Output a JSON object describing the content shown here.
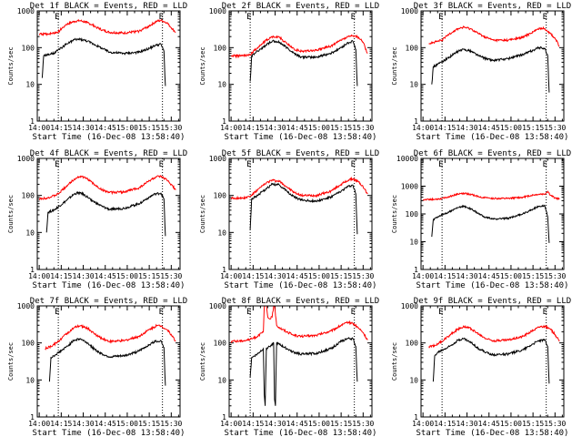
{
  "chart_data": [
    {
      "type": "line",
      "title": "Det 1f BLACK = Events, RED = LLD",
      "xlabel": "Start Time (16-Dec-08 13:58:40)",
      "ylabel": "Counts/sec",
      "x_ticks": [
        "14:00",
        "14:15",
        "14:30",
        "14:45",
        "15:00",
        "15:15",
        "15:30"
      ],
      "y_ticks": [
        "1",
        "10",
        "100",
        "1000"
      ],
      "y_scale": "log",
      "ylim": [
        1,
        1000
      ],
      "markers": [
        "E",
        "E"
      ],
      "marker_times_min": [
        13,
        84
      ],
      "series": [
        {
          "name": "BLACK = Events",
          "color": "#000000",
          "t_min": [
            2,
            3,
            10,
            18,
            24,
            28,
            33,
            38,
            43,
            48,
            58,
            68,
            75,
            79,
            83,
            85,
            86
          ],
          "values": [
            15,
            60,
            70,
            120,
            165,
            170,
            150,
            120,
            95,
            75,
            70,
            75,
            95,
            115,
            125,
            80,
            9
          ]
        },
        {
          "name": "RED = LLD",
          "color": "#ff0000",
          "t_min": [
            0,
            8,
            13,
            18,
            24,
            28,
            33,
            38,
            43,
            48,
            58,
            68,
            75,
            80,
            83,
            87,
            90,
            93
          ],
          "values": [
            230,
            240,
            270,
            420,
            520,
            540,
            480,
            380,
            300,
            260,
            250,
            280,
            390,
            520,
            550,
            480,
            350,
            260
          ]
        }
      ]
    },
    {
      "type": "line",
      "title": "Det 2f BLACK = Events, RED = LLD",
      "xlabel": "Start Time (16-Dec-08 13:58:40)",
      "ylabel": "Counts/sec",
      "x_ticks": [
        "14:00",
        "14:15",
        "14:30",
        "14:45",
        "15:00",
        "15:15",
        "15:30"
      ],
      "y_ticks": [
        "1",
        "10",
        "100",
        "1000"
      ],
      "y_scale": "log",
      "ylim": [
        1,
        1000
      ],
      "markers": [
        "E",
        "E"
      ],
      "marker_times_min": [
        13,
        84
      ],
      "series": [
        {
          "name": "BLACK = Events",
          "color": "#000000",
          "t_min": [
            13,
            14,
            18,
            24,
            28,
            33,
            38,
            43,
            48,
            58,
            68,
            75,
            79,
            83,
            85,
            86
          ],
          "values": [
            12,
            60,
            80,
            120,
            150,
            140,
            100,
            70,
            55,
            55,
            70,
            100,
            130,
            150,
            90,
            9
          ]
        },
        {
          "name": "RED = LLD",
          "color": "#ff0000",
          "t_min": [
            0,
            8,
            13,
            18,
            24,
            28,
            33,
            38,
            43,
            48,
            58,
            68,
            75,
            80,
            83,
            87,
            90,
            93
          ],
          "values": [
            60,
            60,
            65,
            100,
            160,
            200,
            190,
            130,
            90,
            80,
            85,
            110,
            160,
            200,
            210,
            190,
            140,
            70
          ]
        }
      ]
    },
    {
      "type": "line",
      "title": "Det 3f BLACK = Events, RED = LLD",
      "xlabel": "Start Time (16-Dec-08 13:58:40)",
      "ylabel": "Counts/sec",
      "x_ticks": [
        "14:00",
        "14:15",
        "14:30",
        "14:45",
        "15:00",
        "15:15",
        "15:30"
      ],
      "y_ticks": [
        "1",
        "10",
        "100",
        "1000"
      ],
      "y_scale": "log",
      "ylim": [
        1,
        1000
      ],
      "markers": [
        "E",
        "E"
      ],
      "marker_times_min": [
        13,
        84
      ],
      "series": [
        {
          "name": "BLACK = Events",
          "color": "#000000",
          "t_min": [
            6,
            7,
            10,
            18,
            24,
            28,
            33,
            38,
            43,
            48,
            58,
            68,
            75,
            79,
            83,
            85,
            86
          ],
          "values": [
            10,
            30,
            35,
            55,
            80,
            90,
            80,
            60,
            50,
            45,
            50,
            65,
            85,
            100,
            95,
            60,
            6
          ]
        },
        {
          "name": "RED = LLD",
          "color": "#ff0000",
          "t_min": [
            4,
            8,
            13,
            18,
            24,
            28,
            33,
            38,
            43,
            48,
            58,
            68,
            75,
            80,
            83,
            87,
            90,
            93
          ],
          "values": [
            130,
            140,
            160,
            240,
            330,
            360,
            320,
            240,
            190,
            160,
            160,
            190,
            270,
            340,
            330,
            240,
            180,
            110
          ]
        }
      ]
    },
    {
      "type": "line",
      "title": "Det 4f BLACK = Events, RED = LLD",
      "xlabel": "Start Time (16-Dec-08 13:58:40)",
      "ylabel": "Counts/sec",
      "x_ticks": [
        "14:00",
        "14:15",
        "14:30",
        "14:45",
        "15:00",
        "15:15",
        "15:30"
      ],
      "y_ticks": [
        "1",
        "10",
        "100",
        "1000"
      ],
      "y_scale": "log",
      "ylim": [
        1,
        1000
      ],
      "markers": [
        "E",
        "E"
      ],
      "marker_times_min": [
        13,
        84
      ],
      "series": [
        {
          "name": "BLACK = Events",
          "color": "#000000",
          "t_min": [
            5,
            6,
            10,
            18,
            24,
            28,
            33,
            38,
            43,
            48,
            58,
            68,
            75,
            79,
            83,
            85,
            86
          ],
          "values": [
            10,
            35,
            40,
            70,
            110,
            120,
            90,
            65,
            50,
            42,
            45,
            60,
            90,
            110,
            115,
            80,
            8
          ]
        },
        {
          "name": "RED = LLD",
          "color": "#ff0000",
          "t_min": [
            0,
            8,
            13,
            18,
            24,
            28,
            33,
            38,
            43,
            48,
            58,
            68,
            75,
            80,
            83,
            87,
            90,
            93
          ],
          "values": [
            80,
            90,
            110,
            170,
            280,
            330,
            280,
            190,
            140,
            120,
            125,
            160,
            250,
            320,
            320,
            260,
            200,
            140
          ]
        }
      ]
    },
    {
      "type": "line",
      "title": "Det 5f BLACK = Events, RED = LLD",
      "xlabel": "Start Time (16-Dec-08 13:58:40)",
      "ylabel": "Counts/sec",
      "x_ticks": [
        "14:00",
        "14:15",
        "14:30",
        "14:45",
        "15:00",
        "15:15",
        "15:30"
      ],
      "y_ticks": [
        "1",
        "10",
        "100",
        "1000"
      ],
      "y_scale": "log",
      "ylim": [
        1,
        1000
      ],
      "markers": [
        "E",
        "E"
      ],
      "marker_times_min": [
        13,
        84
      ],
      "series": [
        {
          "name": "BLACK = Events",
          "color": "#000000",
          "t_min": [
            13,
            14,
            18,
            24,
            28,
            33,
            38,
            43,
            48,
            58,
            68,
            75,
            79,
            83,
            85,
            86
          ],
          "values": [
            12,
            80,
            100,
            150,
            200,
            190,
            130,
            90,
            75,
            70,
            90,
            130,
            170,
            190,
            110,
            9
          ]
        },
        {
          "name": "RED = LLD",
          "color": "#ff0000",
          "t_min": [
            0,
            8,
            13,
            18,
            24,
            28,
            33,
            38,
            43,
            48,
            58,
            68,
            75,
            80,
            83,
            87,
            90,
            93
          ],
          "values": [
            85,
            85,
            95,
            140,
            220,
            260,
            240,
            170,
            120,
            100,
            100,
            130,
            200,
            260,
            280,
            230,
            170,
            110
          ]
        }
      ]
    },
    {
      "type": "line",
      "title": "Det 6f BLACK = Events, RED = LLD",
      "xlabel": "Start Time (16-Dec-08 13:58:40)",
      "ylabel": "Counts/sec",
      "x_ticks": [
        "14:00",
        "14:15",
        "14:30",
        "14:45",
        "15:00",
        "15:15",
        "15:30"
      ],
      "y_ticks": [
        "1",
        "10",
        "100",
        "1000",
        "10000"
      ],
      "y_scale": "log",
      "ylim": [
        1,
        10000
      ],
      "markers": [
        "E",
        "E"
      ],
      "marker_times_min": [
        13,
        84
      ],
      "series": [
        {
          "name": "BLACK = Events",
          "color": "#000000",
          "t_min": [
            6,
            7,
            10,
            18,
            24,
            28,
            33,
            38,
            43,
            48,
            58,
            68,
            75,
            79,
            83,
            85,
            86
          ],
          "values": [
            15,
            60,
            80,
            120,
            170,
            190,
            150,
            100,
            75,
            65,
            70,
            100,
            150,
            190,
            200,
            80,
            9
          ]
        },
        {
          "name": "RED = LLD",
          "color": "#ff0000",
          "t_min": [
            0,
            8,
            13,
            18,
            24,
            28,
            33,
            38,
            43,
            48,
            58,
            68,
            75,
            80,
            83,
            85,
            87,
            90,
            93
          ],
          "values": [
            330,
            340,
            360,
            420,
            520,
            550,
            500,
            420,
            380,
            360,
            360,
            400,
            480,
            520,
            520,
            650,
            470,
            380,
            340
          ]
        }
      ]
    },
    {
      "type": "line",
      "title": "Det 7f BLACK = Events, RED = LLD",
      "xlabel": "Start Time (16-Dec-08 13:58:40)",
      "ylabel": "Counts/sec",
      "x_ticks": [
        "14:00",
        "14:15",
        "14:30",
        "14:45",
        "15:00",
        "15:15",
        "15:30"
      ],
      "y_ticks": [
        "1",
        "10",
        "100",
        "1000"
      ],
      "y_scale": "log",
      "ylim": [
        1,
        1000
      ],
      "markers": [
        "E",
        "E"
      ],
      "marker_times_min": [
        13,
        84
      ],
      "series": [
        {
          "name": "BLACK = Events",
          "color": "#000000",
          "t_min": [
            7,
            8,
            10,
            18,
            24,
            28,
            33,
            38,
            43,
            48,
            58,
            68,
            75,
            79,
            83,
            85,
            86
          ],
          "values": [
            9,
            40,
            45,
            75,
            120,
            130,
            100,
            65,
            50,
            42,
            45,
            60,
            90,
            110,
            115,
            75,
            7
          ]
        },
        {
          "name": "RED = LLD",
          "color": "#ff0000",
          "t_min": [
            4,
            8,
            13,
            18,
            24,
            28,
            33,
            38,
            43,
            48,
            58,
            68,
            75,
            80,
            83,
            87,
            90,
            93
          ],
          "values": [
            70,
            80,
            110,
            170,
            260,
            290,
            250,
            170,
            130,
            110,
            115,
            150,
            230,
            290,
            290,
            230,
            170,
            110
          ]
        }
      ]
    },
    {
      "type": "line",
      "title": "Det 8f BLACK = Events, RED = LLD",
      "xlabel": "Start Time (16-Dec-08 13:58:40)",
      "ylabel": "Counts/sec",
      "x_ticks": [
        "14:00",
        "14:15",
        "14:30",
        "14:45",
        "15:00",
        "15:15",
        "15:30"
      ],
      "y_ticks": [
        "1",
        "10",
        "100",
        "1000"
      ],
      "y_scale": "log",
      "ylim": [
        1,
        1000
      ],
      "markers": [
        "E",
        "E"
      ],
      "marker_times_min": [
        13,
        84
      ],
      "series": [
        {
          "name": "BLACK = Events",
          "color": "#000000",
          "t_min": [
            13,
            14,
            18,
            22,
            22.6,
            23.2,
            24,
            26,
            27,
            29,
            29.6,
            30.2,
            31,
            33,
            38,
            43,
            48,
            58,
            68,
            75,
            79,
            83,
            85,
            86
          ],
          "values": [
            12,
            40,
            50,
            70,
            4,
            2,
            70,
            80,
            85,
            100,
            3,
            2,
            100,
            90,
            70,
            55,
            50,
            52,
            70,
            110,
            130,
            130,
            80,
            9
          ]
        },
        {
          "name": "RED = LLD",
          "color": "#ff0000",
          "t_min": [
            0,
            8,
            13,
            18,
            22,
            22.6,
            24,
            25,
            26,
            28,
            29,
            29.6,
            31,
            33,
            38,
            43,
            48,
            58,
            68,
            75,
            80,
            83,
            87,
            90,
            93
          ],
          "values": [
            110,
            115,
            125,
            150,
            200,
            1000,
            1000,
            500,
            450,
            500,
            1000,
            1000,
            300,
            260,
            200,
            160,
            150,
            160,
            210,
            300,
            360,
            340,
            250,
            190,
            120
          ]
        }
      ]
    },
    {
      "type": "line",
      "title": "Det 9f BLACK = Events, RED = LLD",
      "xlabel": "Start Time (16-Dec-08 13:58:40)",
      "ylabel": "Counts/sec",
      "x_ticks": [
        "14:00",
        "14:15",
        "14:30",
        "14:45",
        "15:00",
        "15:15",
        "15:30"
      ],
      "y_ticks": [
        "1",
        "10",
        "100",
        "1000"
      ],
      "y_scale": "log",
      "ylim": [
        1,
        1000
      ],
      "markers": [
        "E",
        "E"
      ],
      "marker_times_min": [
        13,
        84
      ],
      "series": [
        {
          "name": "BLACK = Events",
          "color": "#000000",
          "t_min": [
            7,
            8,
            10,
            18,
            24,
            28,
            33,
            38,
            43,
            48,
            58,
            68,
            75,
            79,
            83,
            85,
            86
          ],
          "values": [
            9,
            45,
            55,
            80,
            120,
            130,
            100,
            70,
            55,
            48,
            50,
            65,
            95,
            115,
            120,
            80,
            8
          ]
        },
        {
          "name": "RED = LLD",
          "color": "#ff0000",
          "t_min": [
            4,
            8,
            13,
            18,
            24,
            28,
            33,
            38,
            43,
            48,
            58,
            68,
            75,
            80,
            83,
            87,
            90,
            93
          ],
          "values": [
            80,
            85,
            110,
            160,
            240,
            280,
            240,
            170,
            130,
            115,
            120,
            150,
            220,
            280,
            280,
            230,
            170,
            110
          ]
        }
      ]
    }
  ]
}
